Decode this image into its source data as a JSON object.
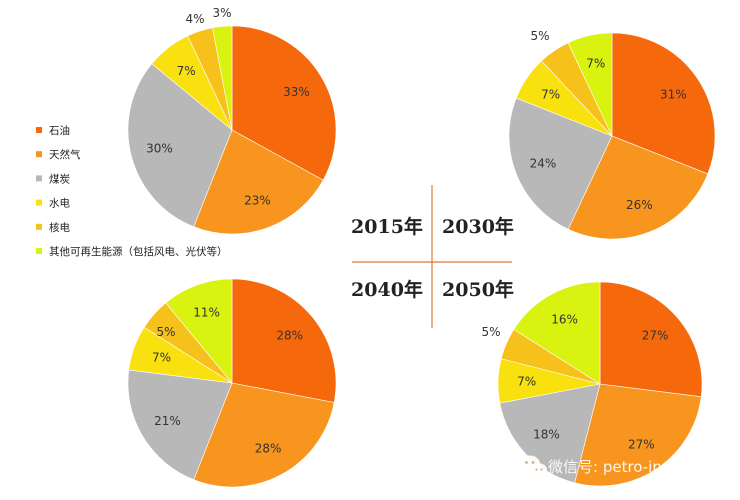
{
  "chart_data": {
    "type": "pie",
    "legend": [
      {
        "name": "石油",
        "color": "#f5690c"
      },
      {
        "name": "天然气",
        "color": "#f7951e"
      },
      {
        "name": "煤炭",
        "color": "#b8b8b8"
      },
      {
        "name": "水电",
        "color": "#f9e10f"
      },
      {
        "name": "核电",
        "color": "#f7c11c"
      },
      {
        "name": "其他可再生能源（包括风电、光伏等）",
        "color": "#d9f20f"
      }
    ],
    "legend_placement": "left",
    "pies": [
      {
        "year": "2015年",
        "slices": [
          {
            "name": "石油",
            "value": 33,
            "label": "33%"
          },
          {
            "name": "天然气",
            "value": 23,
            "label": "23%"
          },
          {
            "name": "煤炭",
            "value": 30,
            "label": "30%"
          },
          {
            "name": "水电",
            "value": 7,
            "label": "7%"
          },
          {
            "name": "核电",
            "value": 4,
            "label": "4%"
          },
          {
            "name": "其他可再生能源（包括风电、光伏等）",
            "value": 3,
            "label": "3%"
          }
        ]
      },
      {
        "year": "2030年",
        "slices": [
          {
            "name": "石油",
            "value": 31,
            "label": "31%"
          },
          {
            "name": "天然气",
            "value": 26,
            "label": "26%"
          },
          {
            "name": "煤炭",
            "value": 24,
            "label": "24%"
          },
          {
            "name": "水电",
            "value": 7,
            "label": "7%"
          },
          {
            "name": "核电",
            "value": 5,
            "label": "5%"
          },
          {
            "name": "其他可再生能源（包括风电、光伏等）",
            "value": 7,
            "label": "7%"
          }
        ]
      },
      {
        "year": "2040年",
        "slices": [
          {
            "name": "石油",
            "value": 28,
            "label": "28%"
          },
          {
            "name": "天然气",
            "value": 28,
            "label": "28%"
          },
          {
            "name": "煤炭",
            "value": 21,
            "label": "21%"
          },
          {
            "name": "水电",
            "value": 7,
            "label": "7%"
          },
          {
            "name": "核电",
            "value": 5,
            "label": "5%"
          },
          {
            "name": "其他可再生能源（包括风电、光伏等）",
            "value": 11,
            "label": "11%"
          }
        ]
      },
      {
        "year": "2050年",
        "slices": [
          {
            "name": "石油",
            "value": 27,
            "label": "27%"
          },
          {
            "name": "天然气",
            "value": 27,
            "label": "27%"
          },
          {
            "name": "煤炭",
            "value": 18,
            "label": "18%"
          },
          {
            "name": "水电",
            "value": 7,
            "label": "7%"
          },
          {
            "name": "核电",
            "value": 5,
            "label": "5%"
          },
          {
            "name": "其他可再生能源（包括风电、光伏等）",
            "value": 16,
            "label": "16%"
          }
        ]
      }
    ]
  },
  "watermark": {
    "text": "微信号: petro-insight",
    "icon": "wechat-icon"
  },
  "colors": {
    "divider": "#e07b39"
  }
}
